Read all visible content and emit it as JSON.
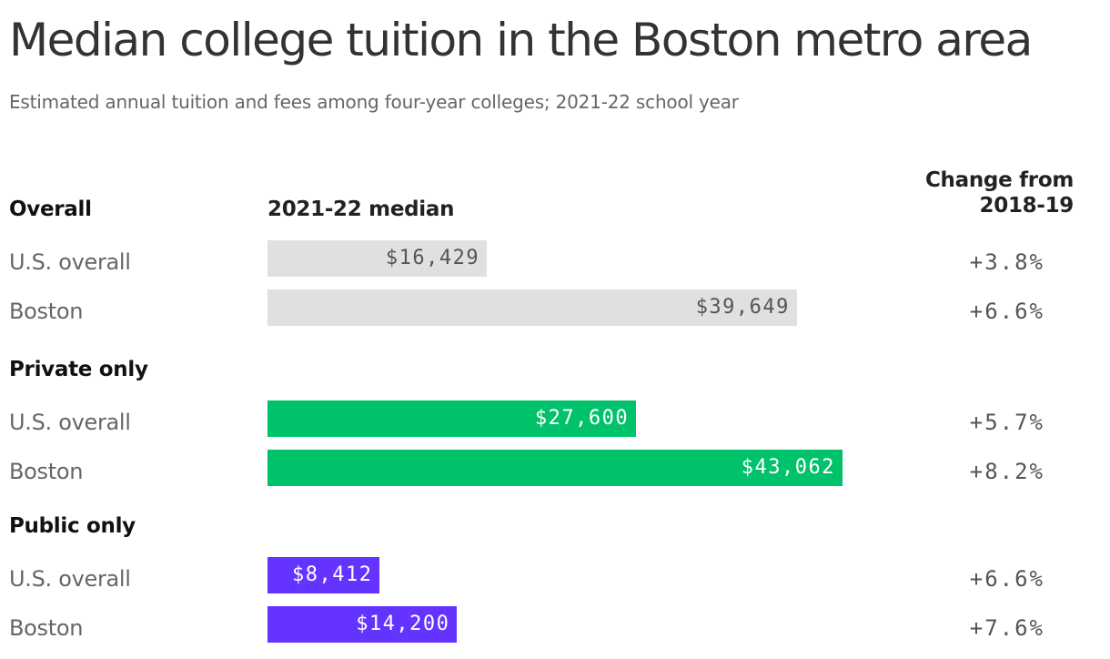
{
  "header": {
    "title": "Median college tuition in the Boston metro area",
    "subtitle": "Estimated annual tuition and fees among four-year colleges; 2021-22 school year"
  },
  "columns": {
    "category": "Overall",
    "median": "2021-22 median",
    "change_line1": "Change from",
    "change_line2": "2018-19"
  },
  "colors": {
    "overall": "#e0e0e0",
    "overall_text": "#555555",
    "private": "#00c26a",
    "private_text": "#ffffff",
    "public": "#6533ff",
    "public_text": "#ffffff"
  },
  "chart_data": {
    "type": "bar",
    "title": "Median college tuition in the Boston metro area",
    "subtitle": "Estimated annual tuition and fees among four-year colleges; 2021-22 school year",
    "value_column_label": "2021-22 median",
    "change_column_label": "Change from 2018-19",
    "groups": [
      {
        "name": "Overall",
        "color_key": "overall",
        "rows": [
          {
            "label": "U.S. overall",
            "value": 16429,
            "value_label": "$16,429",
            "change": "+3.8%"
          },
          {
            "label": "Boston",
            "value": 39649,
            "value_label": "$39,649",
            "change": "+6.6%"
          }
        ]
      },
      {
        "name": "Private only",
        "color_key": "private",
        "rows": [
          {
            "label": "U.S. overall",
            "value": 27600,
            "value_label": "$27,600",
            "change": "+5.7%"
          },
          {
            "label": "Boston",
            "value": 43062,
            "value_label": "$43,062",
            "change": "+8.2%"
          }
        ]
      },
      {
        "name": "Public only",
        "color_key": "public",
        "rows": [
          {
            "label": "U.S. overall",
            "value": 8412,
            "value_label": "$8,412",
            "change": "+6.6%"
          },
          {
            "label": "Boston",
            "value": 14200,
            "value_label": "$14,200",
            "change": "+7.6%"
          }
        ]
      }
    ],
    "xlim": [
      0,
      43062
    ],
    "grid": false,
    "legend": "none"
  }
}
